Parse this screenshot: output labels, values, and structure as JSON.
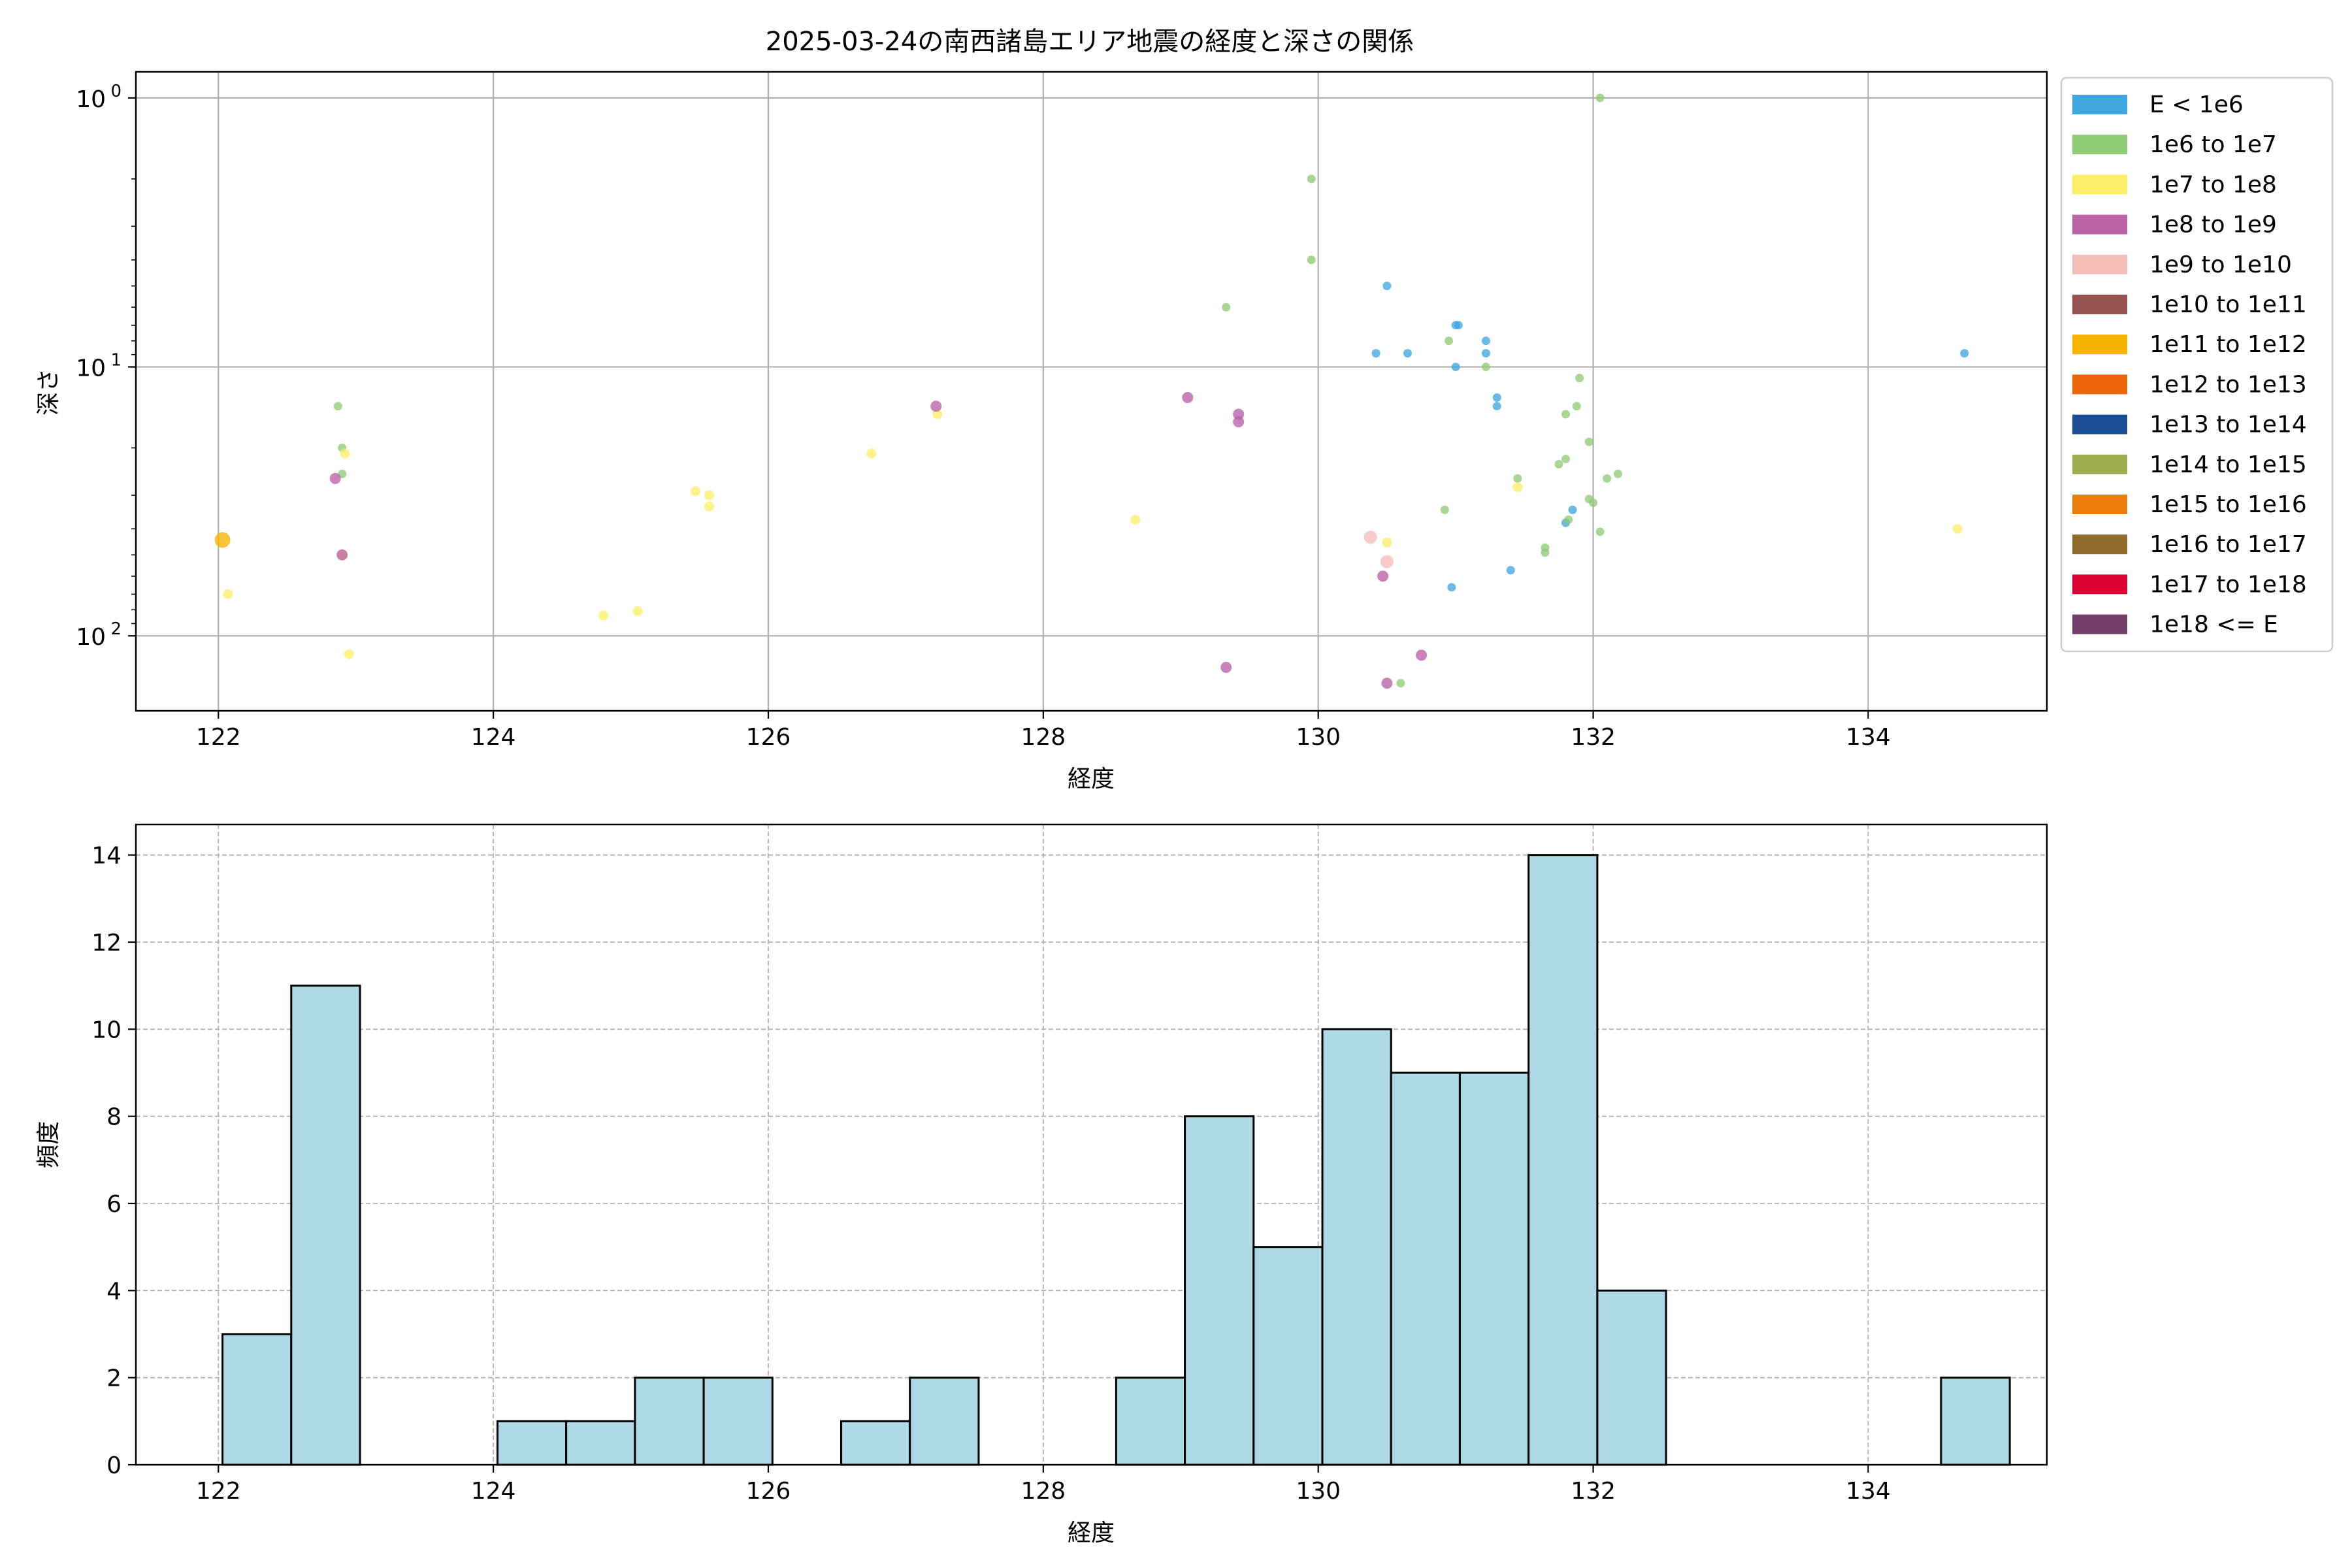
{
  "chart_data": [
    {
      "type": "scatter",
      "title": "2025-03-24の南西諸島エリア地震の経度と深さの関係",
      "xlabel": "経度",
      "ylabel": "深さ",
      "xlim": [
        121.4,
        135.3
      ],
      "ylim": [
        190,
        0.8
      ],
      "yscale": "log",
      "y_inverted": true,
      "grid": true,
      "legend_position": "right-outside",
      "xticks": [
        122,
        124,
        126,
        128,
        130,
        132,
        134
      ],
      "xtick_labels": [
        "122",
        "124",
        "126",
        "128",
        "130",
        "132",
        "134"
      ],
      "yticks": [
        1,
        10,
        100
      ],
      "ytick_labels": [
        {
          "base": "10",
          "exp": "0"
        },
        {
          "base": "10",
          "exp": "1"
        },
        {
          "base": "10",
          "exp": "2"
        }
      ],
      "legend": [
        {
          "label": "E < 1e6",
          "color": "#3fa7df"
        },
        {
          "label": "1e6 to 1e7",
          "color": "#8fca74"
        },
        {
          "label": "1e7 to 1e8",
          "color": "#fdee6a"
        },
        {
          "label": "1e8 to 1e9",
          "color": "#b962a6"
        },
        {
          "label": "1e9 to 1e10",
          "color": "#f4bdb8"
        },
        {
          "label": "1e10 to 1e11",
          "color": "#97524f"
        },
        {
          "label": "1e11 to 1e12",
          "color": "#f6b400"
        },
        {
          "label": "1e12 to 1e13",
          "color": "#ec6508"
        },
        {
          "label": "1e13 to 1e14",
          "color": "#1c4e96"
        },
        {
          "label": "1e14 to 1e15",
          "color": "#9cad4f"
        },
        {
          "label": "1e15 to 1e16",
          "color": "#eb7d0c"
        },
        {
          "label": "1e16 to 1e17",
          "color": "#906a28"
        },
        {
          "label": "1e17 to 1e18",
          "color": "#dd0435"
        },
        {
          "label": "1e18 <= E",
          "color": "#74406b"
        }
      ],
      "series": [
        {
          "name": "E < 1e6",
          "color": "#3fa7df",
          "points": [
            {
              "x": 130.5,
              "y": 5
            },
            {
              "x": 130.42,
              "y": 8.9
            },
            {
              "x": 130.65,
              "y": 8.9
            },
            {
              "x": 131.02,
              "y": 7
            },
            {
              "x": 131.0,
              "y": 7
            },
            {
              "x": 131.0,
              "y": 10
            },
            {
              "x": 131.22,
              "y": 8
            },
            {
              "x": 131.22,
              "y": 8.9
            },
            {
              "x": 131.3,
              "y": 13
            },
            {
              "x": 131.3,
              "y": 14
            },
            {
              "x": 130.97,
              "y": 66
            },
            {
              "x": 131.4,
              "y": 57
            },
            {
              "x": 131.8,
              "y": 38
            },
            {
              "x": 131.85,
              "y": 34
            },
            {
              "x": 134.7,
              "y": 8.9
            }
          ]
        },
        {
          "name": "1e6 to 1e7",
          "color": "#8fca74",
          "points": [
            {
              "x": 122.87,
              "y": 14
            },
            {
              "x": 122.9,
              "y": 20
            },
            {
              "x": 122.9,
              "y": 25
            },
            {
              "x": 129.33,
              "y": 6
            },
            {
              "x": 129.95,
              "y": 2
            },
            {
              "x": 129.95,
              "y": 4
            },
            {
              "x": 130.95,
              "y": 8
            },
            {
              "x": 131.22,
              "y": 10
            },
            {
              "x": 130.6,
              "y": 150
            },
            {
              "x": 130.92,
              "y": 34
            },
            {
              "x": 131.45,
              "y": 26
            },
            {
              "x": 131.65,
              "y": 47
            },
            {
              "x": 131.65,
              "y": 49
            },
            {
              "x": 131.75,
              "y": 23
            },
            {
              "x": 131.8,
              "y": 22
            },
            {
              "x": 131.82,
              "y": 37
            },
            {
              "x": 131.8,
              "y": 15
            },
            {
              "x": 131.88,
              "y": 14
            },
            {
              "x": 131.9,
              "y": 11
            },
            {
              "x": 131.97,
              "y": 19
            },
            {
              "x": 131.97,
              "y": 31
            },
            {
              "x": 132.0,
              "y": 32
            },
            {
              "x": 132.05,
              "y": 41
            },
            {
              "x": 132.1,
              "y": 26
            },
            {
              "x": 132.18,
              "y": 25
            },
            {
              "x": 132.05,
              "y": 1
            }
          ]
        },
        {
          "name": "1e7 to 1e8",
          "color": "#fdee6a",
          "points": [
            {
              "x": 122.07,
              "y": 70
            },
            {
              "x": 122.9,
              "y": 50
            },
            {
              "x": 122.92,
              "y": 21
            },
            {
              "x": 122.95,
              "y": 117
            },
            {
              "x": 124.8,
              "y": 84
            },
            {
              "x": 125.05,
              "y": 81
            },
            {
              "x": 125.47,
              "y": 29
            },
            {
              "x": 125.57,
              "y": 30
            },
            {
              "x": 125.57,
              "y": 33
            },
            {
              "x": 126.75,
              "y": 21
            },
            {
              "x": 127.23,
              "y": 15
            },
            {
              "x": 128.67,
              "y": 37
            },
            {
              "x": 130.5,
              "y": 45
            },
            {
              "x": 131.45,
              "y": 28
            },
            {
              "x": 134.65,
              "y": 40
            }
          ]
        },
        {
          "name": "1e8 to 1e9",
          "color": "#b962a6",
          "points": [
            {
              "x": 122.85,
              "y": 26
            },
            {
              "x": 122.9,
              "y": 50
            },
            {
              "x": 127.22,
              "y": 14
            },
            {
              "x": 129.05,
              "y": 13
            },
            {
              "x": 129.42,
              "y": 15
            },
            {
              "x": 129.42,
              "y": 16
            },
            {
              "x": 129.33,
              "y": 131
            },
            {
              "x": 130.47,
              "y": 60
            },
            {
              "x": 130.5,
              "y": 150
            },
            {
              "x": 130.75,
              "y": 118
            }
          ]
        },
        {
          "name": "1e9 to 1e10",
          "color": "#f4bdb8",
          "points": [
            {
              "x": 130.38,
              "y": 43
            },
            {
              "x": 130.5,
              "y": 53
            }
          ]
        },
        {
          "name": "1e11 to 1e12",
          "color": "#f6b400",
          "points": [
            {
              "x": 122.03,
              "y": 44
            }
          ]
        }
      ]
    },
    {
      "type": "bar",
      "title": "",
      "xlabel": "経度",
      "ylabel": "頻度",
      "xlim": [
        121.4,
        135.3
      ],
      "ylim": [
        0,
        14.7
      ],
      "grid": true,
      "xticks": [
        122,
        124,
        126,
        128,
        130,
        132,
        134
      ],
      "xtick_labels": [
        "122",
        "124",
        "126",
        "128",
        "130",
        "132",
        "134"
      ],
      "yticks": [
        0,
        2,
        4,
        6,
        8,
        10,
        12,
        14
      ],
      "ytick_labels": [
        "0",
        "2",
        "4",
        "6",
        "8",
        "10",
        "12",
        "14"
      ],
      "bar_color": "#add8e6",
      "bins": [
        {
          "x0": 122.03,
          "x1": 122.53,
          "count": 3
        },
        {
          "x0": 122.53,
          "x1": 123.03,
          "count": 11
        },
        {
          "x0": 124.03,
          "x1": 124.53,
          "count": 1
        },
        {
          "x0": 124.53,
          "x1": 125.03,
          "count": 1
        },
        {
          "x0": 125.03,
          "x1": 125.53,
          "count": 2
        },
        {
          "x0": 125.53,
          "x1": 126.03,
          "count": 2
        },
        {
          "x0": 126.53,
          "x1": 127.03,
          "count": 1
        },
        {
          "x0": 127.03,
          "x1": 127.53,
          "count": 2
        },
        {
          "x0": 128.53,
          "x1": 129.03,
          "count": 2
        },
        {
          "x0": 129.03,
          "x1": 129.53,
          "count": 8
        },
        {
          "x0": 129.53,
          "x1": 130.03,
          "count": 5
        },
        {
          "x0": 130.03,
          "x1": 130.53,
          "count": 10
        },
        {
          "x0": 130.53,
          "x1": 131.03,
          "count": 9
        },
        {
          "x0": 131.03,
          "x1": 131.53,
          "count": 9
        },
        {
          "x0": 131.53,
          "x1": 132.03,
          "count": 14
        },
        {
          "x0": 132.03,
          "x1": 132.53,
          "count": 4
        },
        {
          "x0": 134.53,
          "x1": 135.03,
          "count": 2
        }
      ]
    }
  ]
}
